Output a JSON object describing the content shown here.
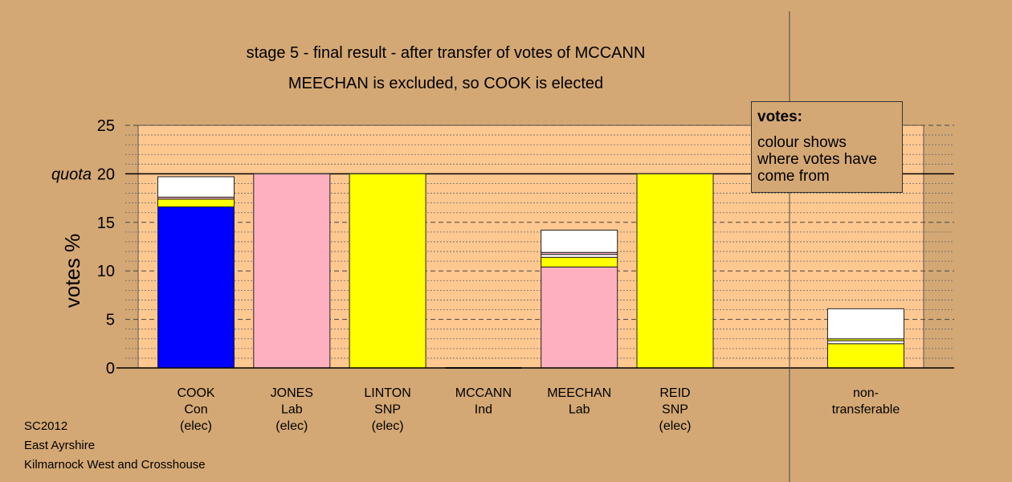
{
  "chart_data": {
    "type": "bar",
    "stacked": true,
    "title": "stage 5 - final result - after transfer of votes of MCCANN",
    "subtitle": "MEECHAN is excluded, so COOK is elected",
    "ylabel": "votes %",
    "ylim": [
      0,
      25
    ],
    "yticks": [
      0,
      5,
      10,
      15,
      20,
      25
    ],
    "quota": 20,
    "quota_label": "quota",
    "grid": "dotted minor, dashed major",
    "categories": [
      {
        "name": "COOK",
        "party": "Con",
        "status": "(elec)"
      },
      {
        "name": "JONES",
        "party": "Lab",
        "status": "(elec)"
      },
      {
        "name": "LINTON",
        "party": "SNP",
        "status": "(elec)"
      },
      {
        "name": "MCCANN",
        "party": "Ind",
        "status": ""
      },
      {
        "name": "MEECHAN",
        "party": "Lab",
        "status": ""
      },
      {
        "name": "REID",
        "party": "SNP",
        "status": "(elec)"
      }
    ],
    "nontransferable_label": [
      "non-",
      "transferable"
    ],
    "stacks": [
      [
        {
          "color": "#0000ff",
          "value": 16.6
        },
        {
          "color": "#ffff00",
          "value": 0.8
        },
        {
          "color": "#ffb0c0",
          "value": 0.2
        },
        {
          "color": "#ffffff",
          "value": 2.1
        }
      ],
      [
        {
          "color": "#ffb0c0",
          "value": 20.0
        }
      ],
      [
        {
          "color": "#ffff00",
          "value": 20.0
        }
      ],
      [],
      [
        {
          "color": "#ffb0c0",
          "value": 10.4
        },
        {
          "color": "#ffff00",
          "value": 1.0
        },
        {
          "color": "#ffffff",
          "value": 0.3
        },
        {
          "color": "#ffb0c0",
          "value": 0.2
        },
        {
          "color": "#ffffff",
          "value": 2.3
        }
      ],
      [
        {
          "color": "#ffff00",
          "value": 20.0
        }
      ]
    ],
    "nontransferable_stack": [
      {
        "color": "#ffff00",
        "value": 2.5
      },
      {
        "color": "#ffffff",
        "value": 0.3
      },
      {
        "color": "#ffff00",
        "value": 0.2
      },
      {
        "color": "#ffffff",
        "value": 3.1
      }
    ],
    "colors": {
      "background": "#d4a874",
      "plot": "#ffc890"
    }
  },
  "legend": {
    "title": "votes:",
    "text": "colour shows where votes have come from"
  },
  "footer": {
    "line1": "SC2012",
    "line2": "East Ayrshire",
    "line3": "Kilmarnock West and Crosshouse"
  }
}
